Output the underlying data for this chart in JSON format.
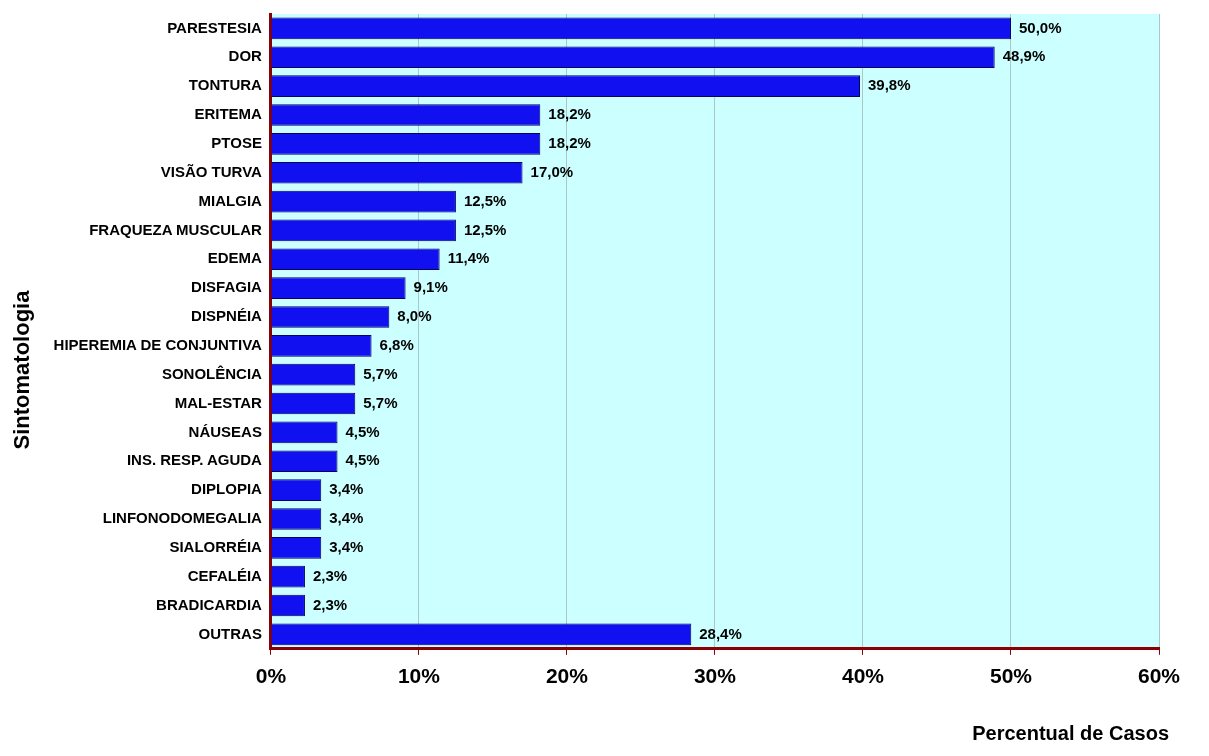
{
  "chart_data": {
    "type": "bar",
    "orientation": "horizontal",
    "xlabel": "Percentual de Casos",
    "ylabel": "Sintomatologia",
    "categories": [
      "PARESTESIA",
      "DOR",
      "TONTURA",
      "ERITEMA",
      "PTOSE",
      "VISÃO TURVA",
      "MIALGIA",
      "FRAQUEZA MUSCULAR",
      "EDEMA",
      "DISFAGIA",
      "DISPNÉIA",
      "HIPEREMIA DE CONJUNTIVA",
      "SONOLÊNCIA",
      "MAL-ESTAR",
      "NÁUSEAS",
      "INS. RESP. AGUDA",
      "DIPLOPIA",
      "LINFONODOMEGALIA",
      "SIALORRÉIA",
      "CEFALÉIA",
      "BRADICARDIA",
      "OUTRAS"
    ],
    "values": [
      50.0,
      48.9,
      39.8,
      18.2,
      18.2,
      17.0,
      12.5,
      12.5,
      11.4,
      9.1,
      8.0,
      6.8,
      5.7,
      5.7,
      4.5,
      4.5,
      3.4,
      3.4,
      3.4,
      2.3,
      2.3,
      28.4
    ],
    "value_labels": [
      "50,0%",
      "48,9%",
      "39,8%",
      "18,2%",
      "18,2%",
      "17,0%",
      "12,5%",
      "12,5%",
      "11,4%",
      "9,1%",
      "8,0%",
      "6,8%",
      "5,7%",
      "5,7%",
      "4,5%",
      "4,5%",
      "3,4%",
      "3,4%",
      "3,4%",
      "2,3%",
      "2,3%",
      "28,4%"
    ],
    "color": "#1010f0",
    "xlim": [
      0,
      60
    ],
    "xticks": [
      {
        "value": 0,
        "label": "0%"
      },
      {
        "value": 10,
        "label": "10%"
      },
      {
        "value": 20,
        "label": "20%"
      },
      {
        "value": 30,
        "label": "30%"
      },
      {
        "value": 40,
        "label": "40%"
      },
      {
        "value": 50,
        "label": "50%"
      },
      {
        "value": 60,
        "label": "60%"
      }
    ],
    "grid": "x",
    "legend": false
  }
}
